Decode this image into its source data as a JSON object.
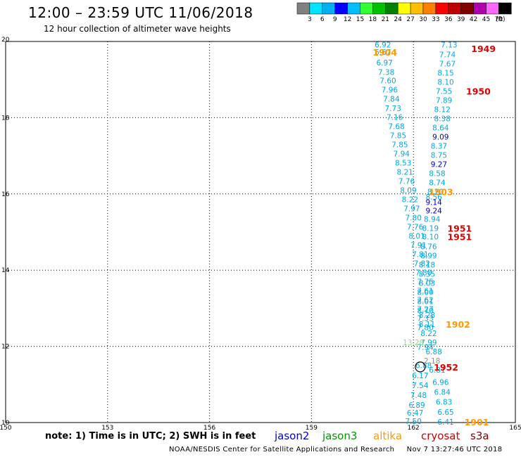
{
  "header": {
    "title": "12:00 – 23:59 UTC 11/06/2018",
    "subtitle": "12 hour collection of altimeter wave heights"
  },
  "color_scale": {
    "labels": [
      "3",
      "6",
      "9",
      "12",
      "15",
      "18",
      "21",
      "24",
      "27",
      "30",
      "33",
      "36",
      "39",
      "42",
      "45",
      "70"
    ],
    "unit": "(ft)",
    "colors": [
      "#808080",
      "#00e5ff",
      "#00b0f0",
      "#0000ff",
      "#00bfff",
      "#33ff33",
      "#00c000",
      "#008000",
      "#ffff00",
      "#ffbf00",
      "#ff8000",
      "#ff0000",
      "#c00000",
      "#800000",
      "#b000b0",
      "#ff66ff",
      "#000000"
    ]
  },
  "footer": {
    "note": "note: 1) Time is in UTC; 2) SWH is in feet",
    "satellites": [
      {
        "name": "jason2",
        "color": "#0000cc"
      },
      {
        "name": "jason3",
        "color": "#009900"
      },
      {
        "name": "altika",
        "color": "#ff9900"
      },
      {
        "name": "cryosat",
        "color": "#cc0000"
      },
      {
        "name": "s3a",
        "color": "#800000"
      }
    ],
    "credit": "NOAA/NESDIS Center for Satellite Applications and Research",
    "timestamp": "Nov  7 13:27:46 UTC 2018"
  },
  "chart_data": {
    "type": "scatter",
    "title": "12:00 – 23:59 UTC 11/06/2018",
    "subtitle": "12 hour collection of altimeter wave heights",
    "xlabel": "",
    "ylabel": "",
    "xlim": [
      150,
      165
    ],
    "ylim": [
      10,
      20
    ],
    "x_ticks": [
      150,
      153,
      156,
      159,
      162,
      165
    ],
    "y_ticks": [
      10,
      12,
      14,
      16,
      18,
      20
    ],
    "grid": true,
    "series": [
      {
        "name": "jason2",
        "color": "#00a8e0",
        "points": [
          {
            "x": 161.1,
            "y": 19.92,
            "v": "6.92"
          },
          {
            "x": 161.1,
            "y": 19.72,
            "v": "6.67"
          },
          {
            "x": 161.15,
            "y": 19.45,
            "v": "6.97"
          },
          {
            "x": 161.2,
            "y": 19.2,
            "v": "7.38"
          },
          {
            "x": 161.25,
            "y": 18.98,
            "v": "7.60"
          },
          {
            "x": 161.3,
            "y": 18.74,
            "v": "7.96"
          },
          {
            "x": 161.35,
            "y": 18.5,
            "v": "7.84"
          },
          {
            "x": 161.4,
            "y": 18.25,
            "v": "7.73"
          },
          {
            "x": 161.45,
            "y": 18.02,
            "v": "7.16"
          },
          {
            "x": 161.5,
            "y": 17.78,
            "v": "7.68"
          },
          {
            "x": 161.55,
            "y": 17.54,
            "v": "7.85"
          },
          {
            "x": 161.6,
            "y": 17.3,
            "v": "7.85"
          },
          {
            "x": 161.65,
            "y": 17.06,
            "v": "7.94"
          },
          {
            "x": 161.7,
            "y": 16.82,
            "v": "8.53"
          },
          {
            "x": 161.75,
            "y": 16.58,
            "v": "8.21"
          },
          {
            "x": 161.8,
            "y": 16.34,
            "v": "7.76"
          },
          {
            "x": 161.85,
            "y": 16.1,
            "v": "8.09"
          },
          {
            "x": 161.9,
            "y": 15.86,
            "v": "8.22"
          },
          {
            "x": 161.95,
            "y": 15.62,
            "v": "7.97"
          },
          {
            "x": 162.0,
            "y": 15.38,
            "v": "7.80"
          },
          {
            "x": 162.05,
            "y": 15.14,
            "v": "7.76"
          },
          {
            "x": 162.1,
            "y": 14.9,
            "v": "8.01"
          },
          {
            "x": 162.15,
            "y": 14.66,
            "v": "7.91"
          },
          {
            "x": 162.2,
            "y": 14.42,
            "v": "7.81"
          },
          {
            "x": 162.25,
            "y": 14.18,
            "v": "7.82"
          },
          {
            "x": 162.3,
            "y": 13.94,
            "v": "7.80"
          },
          {
            "x": 162.35,
            "y": 13.7,
            "v": "7.75"
          },
          {
            "x": 162.35,
            "y": 13.46,
            "v": "7.61"
          },
          {
            "x": 162.35,
            "y": 13.22,
            "v": "7.62"
          },
          {
            "x": 162.35,
            "y": 12.98,
            "v": "7.27"
          },
          {
            "x": 162.35,
            "y": 12.74,
            "v": "7.33"
          },
          {
            "x": 162.35,
            "y": 12.5,
            "v": "7.80"
          },
          {
            "x": 162.35,
            "y": 11.98,
            "v": "7.94"
          },
          {
            "x": 162.3,
            "y": 11.5,
            "v": "6.88"
          },
          {
            "x": 162.2,
            "y": 11.24,
            "v": "6.17"
          },
          {
            "x": 162.2,
            "y": 10.98,
            "v": "7.54"
          },
          {
            "x": 162.15,
            "y": 10.72,
            "v": "7.48"
          },
          {
            "x": 162.1,
            "y": 10.46,
            "v": "6.89"
          },
          {
            "x": 162.05,
            "y": 10.26,
            "v": "6.47"
          },
          {
            "x": 162.0,
            "y": 10.04,
            "v": "7.50"
          },
          {
            "x": 163.05,
            "y": 19.92,
            "v": "7.13"
          },
          {
            "x": 163.0,
            "y": 19.66,
            "v": "7.74"
          },
          {
            "x": 163.0,
            "y": 19.42,
            "v": "7.67"
          },
          {
            "x": 162.95,
            "y": 19.18,
            "v": "8.15"
          },
          {
            "x": 162.95,
            "y": 18.94,
            "v": "8.10"
          },
          {
            "x": 162.9,
            "y": 18.7,
            "v": "7.55"
          },
          {
            "x": 162.9,
            "y": 18.46,
            "v": "7.89"
          },
          {
            "x": 162.85,
            "y": 18.22,
            "v": "8.12"
          },
          {
            "x": 162.85,
            "y": 17.98,
            "v": "8.38"
          },
          {
            "x": 162.8,
            "y": 17.74,
            "v": "8.64"
          },
          {
            "x": 162.75,
            "y": 17.26,
            "v": "8.37"
          },
          {
            "x": 162.75,
            "y": 17.02,
            "v": "8.75"
          },
          {
            "x": 162.7,
            "y": 16.54,
            "v": "8.58"
          },
          {
            "x": 162.7,
            "y": 16.3,
            "v": "8.74"
          },
          {
            "x": 162.65,
            "y": 16.06,
            "v": "8.20"
          },
          {
            "x": 162.6,
            "y": 15.92,
            "v": "8.56"
          },
          {
            "x": 162.55,
            "y": 15.34,
            "v": "8.94"
          },
          {
            "x": 162.5,
            "y": 15.1,
            "v": "8.19"
          },
          {
            "x": 162.5,
            "y": 14.88,
            "v": "8.10"
          },
          {
            "x": 162.45,
            "y": 14.62,
            "v": "8.76"
          },
          {
            "x": 162.45,
            "y": 14.38,
            "v": "8.99"
          },
          {
            "x": 162.4,
            "y": 14.14,
            "v": "8.18"
          },
          {
            "x": 162.4,
            "y": 13.9,
            "v": "8.35"
          },
          {
            "x": 162.4,
            "y": 13.66,
            "v": "8.03"
          },
          {
            "x": 162.35,
            "y": 13.42,
            "v": "8.00"
          },
          {
            "x": 162.35,
            "y": 13.18,
            "v": "8.01"
          },
          {
            "x": 162.35,
            "y": 12.94,
            "v": "8.70"
          },
          {
            "x": 162.4,
            "y": 12.82,
            "v": "8.28"
          },
          {
            "x": 162.4,
            "y": 12.58,
            "v": "8.11"
          },
          {
            "x": 162.45,
            "y": 12.34,
            "v": "8.22"
          },
          {
            "x": 162.45,
            "y": 12.1,
            "v": "7.99"
          },
          {
            "x": 162.6,
            "y": 11.86,
            "v": "6.88"
          },
          {
            "x": 162.7,
            "y": 11.38,
            "v": "6.81"
          },
          {
            "x": 162.8,
            "y": 11.06,
            "v": "6.96"
          },
          {
            "x": 162.85,
            "y": 10.8,
            "v": "6.84"
          },
          {
            "x": 162.9,
            "y": 10.54,
            "v": "6.83"
          },
          {
            "x": 162.95,
            "y": 10.28,
            "v": "6.65"
          },
          {
            "x": 162.95,
            "y": 10.02,
            "v": "6.41"
          }
        ]
      },
      {
        "name": "jason2-high",
        "color": "#0000c8",
        "points": [
          {
            "x": 162.8,
            "y": 17.5,
            "v": "9.09"
          },
          {
            "x": 162.75,
            "y": 16.78,
            "v": "9.27"
          },
          {
            "x": 162.6,
            "y": 15.78,
            "v": "9.14"
          },
          {
            "x": 162.6,
            "y": 15.56,
            "v": "9.24"
          }
        ]
      },
      {
        "name": "jason3-low",
        "color": "#88dd88",
        "points": [
          {
            "x": 162.0,
            "y": 12.1,
            "v": "13.28"
          }
        ]
      },
      {
        "name": "grey",
        "color": "#909090",
        "points": [
          {
            "x": 162.55,
            "y": 11.62,
            "v": "2.18"
          }
        ]
      }
    ],
    "annotations": [
      {
        "text": "1904",
        "x": 160.8,
        "y": 19.72,
        "color": "#ff9900"
      },
      {
        "text": "1949",
        "x": 163.7,
        "y": 19.82,
        "color": "#e00000"
      },
      {
        "text": "1950",
        "x": 163.55,
        "y": 18.7,
        "color": "#e00000"
      },
      {
        "text": "1903",
        "x": 162.45,
        "y": 16.06,
        "color": "#ff9900"
      },
      {
        "text": "1951",
        "x": 163.0,
        "y": 15.1,
        "color": "#e00000"
      },
      {
        "text": "1951",
        "x": 163.0,
        "y": 14.88,
        "color": "#e00000"
      },
      {
        "text": "1902",
        "x": 162.95,
        "y": 12.58,
        "color": "#ff9900"
      },
      {
        "text": "1952",
        "x": 162.6,
        "y": 11.46,
        "color": "#e00000"
      },
      {
        "text": "1901",
        "x": 163.5,
        "y": 10.02,
        "color": "#ff9900"
      }
    ]
  }
}
